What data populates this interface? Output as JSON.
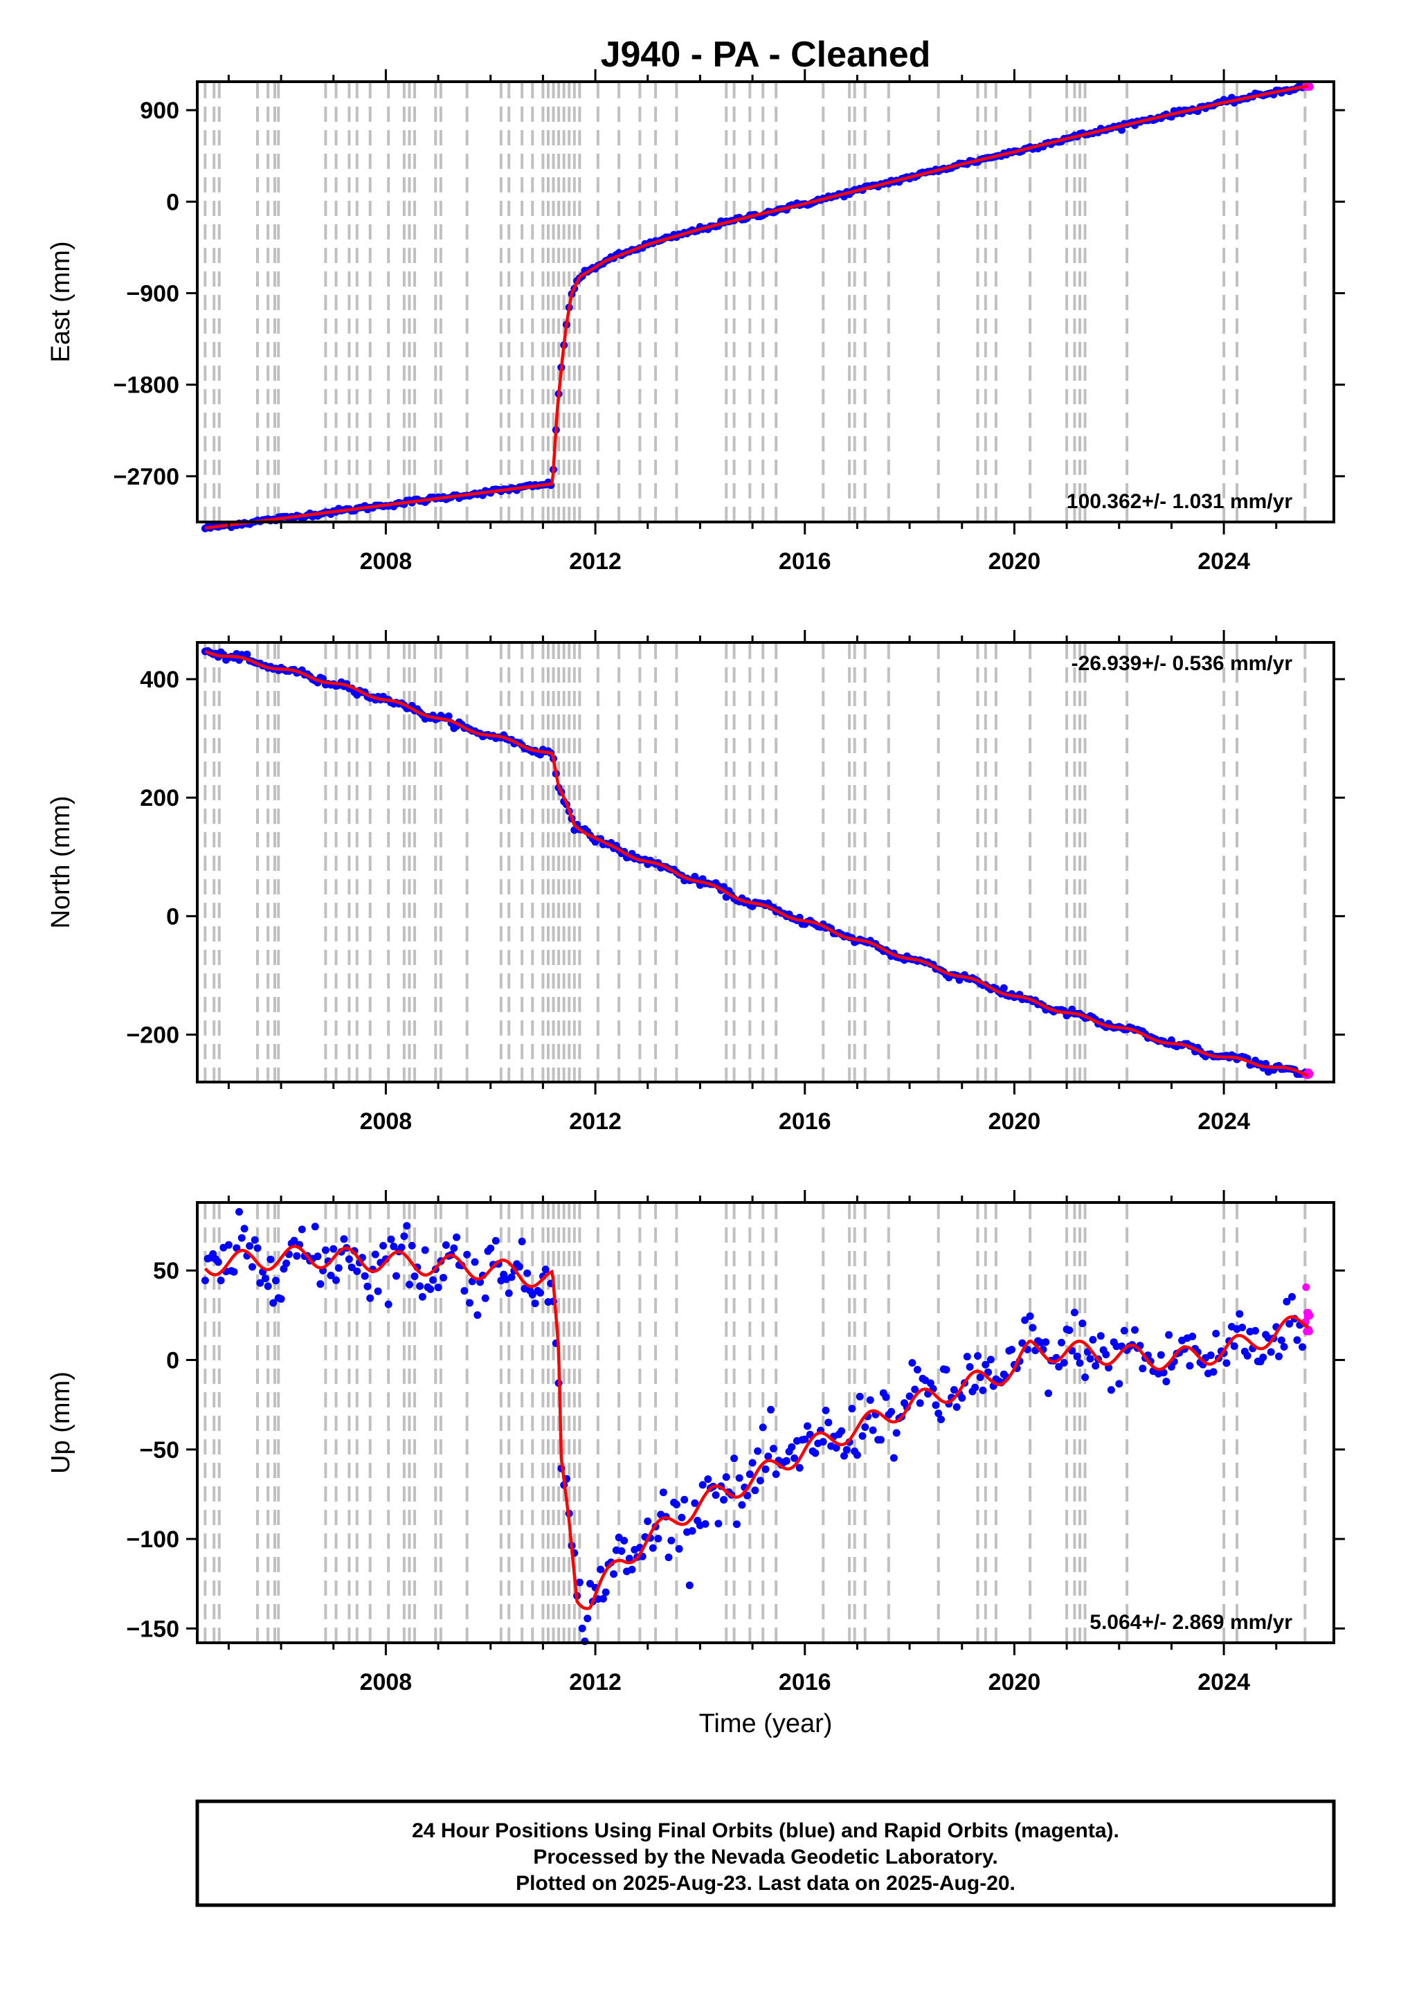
{
  "chart_data": {
    "type": "scatter",
    "title": "J940  - PA - Cleaned",
    "xlabel": "Time (year)",
    "xlim": [
      2004.4,
      2026.1
    ],
    "x_ticks": [
      2008,
      2012,
      2016,
      2020,
      2024
    ],
    "colors": {
      "final": "#0000ff",
      "rapid": "#ff00ff",
      "model": "#ff0000",
      "steps": "#c0c0c0"
    },
    "event_lines": [
      2004.55,
      2004.72,
      2004.82,
      2005.55,
      2005.75,
      2005.88,
      2005.95,
      2006.85,
      2007.05,
      2007.3,
      2007.45,
      2007.7,
      2008.05,
      2008.35,
      2008.45,
      2008.55,
      2008.95,
      2009.05,
      2009.55,
      2010.2,
      2010.35,
      2010.6,
      2010.8,
      2011.0,
      2011.1,
      2011.2,
      2011.3,
      2011.4,
      2011.5,
      2011.6,
      2011.7,
      2012.05,
      2012.45,
      2012.85,
      2013.15,
      2013.55,
      2014.5,
      2014.65,
      2014.95,
      2015.2,
      2015.45,
      2016.35,
      2016.85,
      2016.95,
      2017.15,
      2017.6,
      2018.55,
      2019.3,
      2019.45,
      2019.65,
      2020.3,
      2021.0,
      2021.15,
      2021.25,
      2021.35,
      2022.15,
      2024.0,
      2024.25,
      2025.55
    ],
    "panels": [
      {
        "ylabel": "East (mm)",
        "ylim": [
          -3150,
          1180
        ],
        "y_ticks": [
          900,
          0,
          -900,
          -1800,
          -2700
        ],
        "y_tick_labels": [
          "900",
          "0",
          "−900",
          "−1800",
          "−2700"
        ],
        "rate_text": "100.362+/- 1.031 mm/yr",
        "rate_position": "bottom-right",
        "model_knots": [
          [
            2004.55,
            -3210
          ],
          [
            2011.18,
            -2775
          ],
          [
            2011.28,
            -2000
          ],
          [
            2011.38,
            -1500
          ],
          [
            2011.45,
            -1200
          ],
          [
            2011.55,
            -900
          ],
          [
            2011.7,
            -740
          ],
          [
            2012.2,
            -580
          ],
          [
            2013,
            -420
          ],
          [
            2014,
            -270
          ],
          [
            2015,
            -140
          ],
          [
            2016,
            -20
          ],
          [
            2017,
            110
          ],
          [
            2018,
            240
          ],
          [
            2019,
            370
          ],
          [
            2020,
            490
          ],
          [
            2021,
            620
          ],
          [
            2022,
            740
          ],
          [
            2023,
            860
          ],
          [
            2024,
            975
          ],
          [
            2025,
            1080
          ],
          [
            2025.62,
            1140
          ]
        ],
        "noise": 12,
        "annual_amplitude": 0
      },
      {
        "ylabel": "North (mm)",
        "ylim": [
          -280,
          462
        ],
        "y_ticks": [
          400,
          200,
          0,
          -200
        ],
        "y_tick_labels": [
          "400",
          "200",
          "0",
          "−200"
        ],
        "rate_text": "-26.939+/- 0.536 mm/yr",
        "rate_position": "top-right",
        "model_knots": [
          [
            2004.55,
            448
          ],
          [
            2005.5,
            428
          ],
          [
            2006.5,
            406
          ],
          [
            2007.5,
            380
          ],
          [
            2008.5,
            350
          ],
          [
            2009.5,
            318
          ],
          [
            2010.5,
            292
          ],
          [
            2011.18,
            272
          ],
          [
            2011.3,
            215
          ],
          [
            2011.45,
            190
          ],
          [
            2011.6,
            155
          ],
          [
            2012.2,
            120
          ],
          [
            2013,
            92
          ],
          [
            2014,
            58
          ],
          [
            2015,
            22
          ],
          [
            2016,
            -8
          ],
          [
            2017,
            -40
          ],
          [
            2018,
            -72
          ],
          [
            2019,
            -102
          ],
          [
            2020,
            -135
          ],
          [
            2021,
            -163
          ],
          [
            2022,
            -188
          ],
          [
            2023,
            -215
          ],
          [
            2024,
            -238
          ],
          [
            2025,
            -255
          ],
          [
            2025.62,
            -268
          ]
        ],
        "noise": 3,
        "annual_amplitude": 3
      },
      {
        "ylabel": "Up (mm)",
        "ylim": [
          -158,
          88
        ],
        "y_ticks": [
          50,
          0,
          -50,
          -100,
          -150
        ],
        "y_tick_labels": [
          "50",
          "0",
          "−50",
          "−100",
          "−150"
        ],
        "rate_text": "5.064+/- 2.869 mm/yr",
        "rate_position": "bottom-right",
        "model_knots": [
          [
            2004.55,
            53
          ],
          [
            2005.5,
            56
          ],
          [
            2006.5,
            58
          ],
          [
            2007.5,
            56
          ],
          [
            2008.5,
            54
          ],
          [
            2009.5,
            52
          ],
          [
            2010.5,
            49
          ],
          [
            2011.18,
            44
          ],
          [
            2011.3,
            0
          ],
          [
            2011.35,
            -60
          ],
          [
            2011.5,
            -90
          ],
          [
            2011.65,
            -130
          ],
          [
            2011.9,
            -135
          ],
          [
            2012.5,
            -112
          ],
          [
            2013,
            -100
          ],
          [
            2014,
            -80
          ],
          [
            2015,
            -67
          ],
          [
            2016,
            -50
          ],
          [
            2017,
            -38
          ],
          [
            2018,
            -25
          ],
          [
            2019,
            -15
          ],
          [
            2020,
            -5
          ],
          [
            2020.3,
            5
          ],
          [
            2021,
            5
          ],
          [
            2022,
            3
          ],
          [
            2023,
            0
          ],
          [
            2024,
            5
          ],
          [
            2025,
            15
          ],
          [
            2025.62,
            22
          ]
        ],
        "noise": 9,
        "annual_amplitude": 6
      }
    ]
  },
  "footer": {
    "line1": "24 Hour Positions Using Final Orbits (blue) and Rapid Orbits (magenta).",
    "line2": "Processed by the Nevada Geodetic Laboratory.",
    "line3": "Plotted on 2025-Aug-23. Last data on 2025-Aug-20."
  }
}
